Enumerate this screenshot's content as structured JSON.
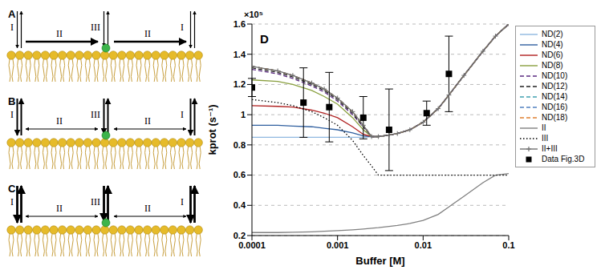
{
  "diagram": {
    "panels": [
      {
        "label": "A"
      },
      {
        "label": "B"
      },
      {
        "label": "C"
      }
    ],
    "arrow_labels": [
      "I",
      "II",
      "III"
    ]
  },
  "chart_data": {
    "type": "line",
    "panel_label": "D",
    "xlabel": "Buffer [M]",
    "ylabel": "kprot (s⁻¹)",
    "annotations": [
      {
        "text": "×10⁵"
      }
    ],
    "log": "x",
    "grid": true,
    "legend": "right",
    "xlim": [
      0.0001,
      0.1
    ],
    "xticks": [
      0.0001,
      0.001,
      0.01,
      0.1
    ],
    "ylim": [
      0.2,
      1.6
    ],
    "yticks": [
      0.2,
      0.4,
      0.6,
      0.8,
      1,
      1.2,
      1.4,
      1.6
    ],
    "x": [
      0.0001,
      0.0002,
      0.0003,
      0.0005,
      0.0007,
      0.001,
      0.0015,
      0.002,
      0.0025,
      0.003,
      0.004,
      0.005,
      0.007,
      0.01,
      0.015,
      0.02,
      0.03,
      0.05,
      0.07,
      0.1
    ],
    "series": [
      {
        "name": "ND(2)",
        "color": "#8fb8e0",
        "line_style": "solid",
        "values": [
          0.85,
          0.85,
          0.85,
          0.85,
          0.85,
          0.85,
          0.85,
          0.85,
          0.855,
          0.855,
          0.865,
          0.875,
          0.9,
          0.95,
          1.04,
          1.13,
          1.26,
          1.42,
          1.52,
          1.6
        ]
      },
      {
        "name": "ND(4)",
        "color": "#2f5f9f",
        "line_style": "solid",
        "values": [
          0.93,
          0.93,
          0.925,
          0.92,
          0.91,
          0.9,
          0.88,
          0.86,
          0.855,
          0.855,
          0.865,
          0.875,
          0.9,
          0.95,
          1.04,
          1.13,
          1.26,
          1.42,
          1.52,
          1.6
        ]
      },
      {
        "name": "ND(6)",
        "color": "#b02020",
        "line_style": "solid",
        "values": [
          1.06,
          1.055,
          1.05,
          1.03,
          1.01,
          0.98,
          0.92,
          0.87,
          0.855,
          0.855,
          0.865,
          0.875,
          0.9,
          0.95,
          1.04,
          1.13,
          1.26,
          1.42,
          1.52,
          1.6
        ]
      },
      {
        "name": "ND(8)",
        "color": "#8aa040",
        "line_style": "solid",
        "values": [
          1.23,
          1.22,
          1.2,
          1.16,
          1.12,
          1.07,
          0.98,
          0.9,
          0.855,
          0.855,
          0.865,
          0.875,
          0.9,
          0.95,
          1.04,
          1.13,
          1.26,
          1.42,
          1.52,
          1.6
        ]
      },
      {
        "name": "ND(10)",
        "color": "#5a2a80",
        "line_style": "dashed",
        "values": [
          1.3,
          1.27,
          1.24,
          1.19,
          1.15,
          1.09,
          1.0,
          0.92,
          0.855,
          0.855,
          0.865,
          0.875,
          0.9,
          0.95,
          1.04,
          1.13,
          1.26,
          1.42,
          1.52,
          1.6
        ]
      },
      {
        "name": "ND(12)",
        "color": "#202020",
        "line_style": "dashed",
        "values": [
          1.31,
          1.28,
          1.25,
          1.2,
          1.16,
          1.1,
          1.01,
          0.92,
          0.855,
          0.855,
          0.865,
          0.875,
          0.9,
          0.95,
          1.04,
          1.13,
          1.26,
          1.42,
          1.52,
          1.6
        ]
      },
      {
        "name": "ND(14)",
        "color": "#40a0b0",
        "line_style": "dashed",
        "values": [
          1.32,
          1.29,
          1.26,
          1.21,
          1.17,
          1.11,
          1.02,
          0.93,
          0.855,
          0.855,
          0.865,
          0.875,
          0.9,
          0.95,
          1.04,
          1.13,
          1.26,
          1.42,
          1.52,
          1.6
        ]
      },
      {
        "name": "ND(16)",
        "color": "#5080c0",
        "line_style": "dashed",
        "values": [
          1.32,
          1.29,
          1.26,
          1.21,
          1.17,
          1.11,
          1.02,
          0.93,
          0.855,
          0.855,
          0.865,
          0.875,
          0.9,
          0.95,
          1.04,
          1.13,
          1.26,
          1.42,
          1.52,
          1.6
        ]
      },
      {
        "name": "ND(18)",
        "color": "#e08030",
        "line_style": "dashed",
        "values": [
          1.32,
          1.29,
          1.26,
          1.21,
          1.17,
          1.11,
          1.02,
          0.93,
          0.855,
          0.855,
          0.865,
          0.875,
          0.9,
          0.95,
          1.04,
          1.13,
          1.26,
          1.42,
          1.52,
          1.6
        ]
      },
      {
        "name": "II",
        "color": "#808080",
        "line_style": "solid",
        "values": [
          0.22,
          0.22,
          0.222,
          0.225,
          0.228,
          0.232,
          0.238,
          0.243,
          0.248,
          0.252,
          0.26,
          0.267,
          0.28,
          0.3,
          0.34,
          0.39,
          0.46,
          0.55,
          0.6,
          0.61
        ]
      },
      {
        "name": "III",
        "color": "#000000",
        "line_style": "dotted",
        "values": [
          1.1,
          1.08,
          1.06,
          1.02,
          0.98,
          0.93,
          0.83,
          0.73,
          0.66,
          0.6,
          0.6,
          0.6,
          0.6,
          0.6,
          0.6,
          0.6,
          0.6,
          0.6,
          0.6,
          0.6
        ]
      },
      {
        "name": "II+III",
        "color": "#707070",
        "line_style": "solid",
        "marker": "plus",
        "values": [
          1.32,
          1.29,
          1.26,
          1.21,
          1.17,
          1.11,
          1.02,
          0.93,
          0.855,
          0.855,
          0.865,
          0.875,
          0.9,
          0.95,
          1.04,
          1.13,
          1.26,
          1.42,
          1.52,
          1.6
        ]
      },
      {
        "name": "Data Fig.3D",
        "type": "scatter",
        "color": "#000000",
        "marker": "square",
        "x": [
          0.0001,
          0.0004,
          0.0008,
          0.002,
          0.004,
          0.011,
          0.02
        ],
        "values": [
          1.18,
          1.08,
          1.05,
          0.98,
          0.9,
          1.01,
          1.27
        ],
        "errors": [
          0.06,
          0.23,
          0.23,
          0.14,
          0.27,
          0.08,
          0.25
        ]
      }
    ]
  }
}
